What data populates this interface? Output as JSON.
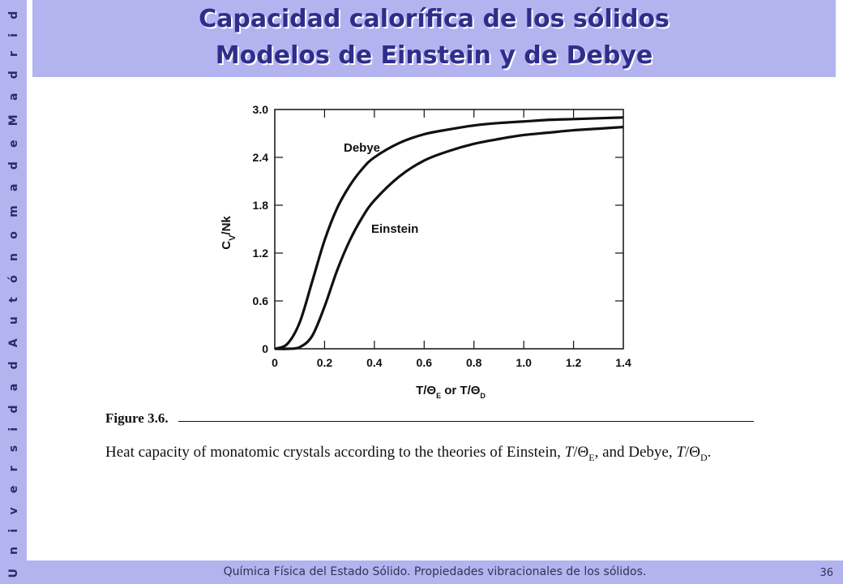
{
  "sidebar": {
    "text": "U n i v e r s i d a d   A u t ó n o m a   d e   M a d r i d"
  },
  "title": {
    "line1": "Capacidad calorífica de los sólidos",
    "line2": "Modelos de Einstein y de Debye"
  },
  "footer": {
    "text": "Química Física del Estado Sólido. Propiedades vibracionales de los sólidos.",
    "page": "36"
  },
  "chart_data": {
    "type": "line",
    "title": "",
    "xlabel": "T/Θ_E or T/Θ_D",
    "ylabel": "C_V/Nk",
    "xlim": [
      0,
      1.4
    ],
    "ylim": [
      0,
      3.0
    ],
    "grid": true,
    "x_ticks": [
      "0",
      "0.2",
      "0.4",
      "0.6",
      "0.8",
      "1.0",
      "1.2",
      "1.4"
    ],
    "y_ticks": [
      "0",
      "0.6",
      "1.2",
      "1.8",
      "2.4",
      "3.0"
    ],
    "series": [
      {
        "name": "Debye",
        "x": [
          0.0,
          0.05,
          0.1,
          0.15,
          0.2,
          0.25,
          0.3,
          0.35,
          0.4,
          0.5,
          0.6,
          0.7,
          0.8,
          0.9,
          1.0,
          1.1,
          1.2,
          1.3,
          1.4
        ],
        "y": [
          0.0,
          0.06,
          0.33,
          0.84,
          1.36,
          1.76,
          2.04,
          2.25,
          2.4,
          2.58,
          2.69,
          2.75,
          2.8,
          2.83,
          2.85,
          2.87,
          2.88,
          2.89,
          2.9
        ]
      },
      {
        "name": "Einstein",
        "x": [
          0.0,
          0.05,
          0.1,
          0.15,
          0.2,
          0.25,
          0.3,
          0.35,
          0.4,
          0.5,
          0.6,
          0.7,
          0.8,
          0.9,
          1.0,
          1.1,
          1.2,
          1.3,
          1.4
        ],
        "y": [
          0.0,
          0.0,
          0.02,
          0.16,
          0.53,
          0.98,
          1.35,
          1.64,
          1.86,
          2.16,
          2.36,
          2.48,
          2.57,
          2.63,
          2.68,
          2.71,
          2.74,
          2.76,
          2.78
        ]
      }
    ],
    "annotations": [
      "Debye",
      "Einstein"
    ]
  },
  "caption": {
    "figure_label": "Figure 3.6.",
    "text_prefix": "Heat capacity of monatomic crystals according to the theories of Einstein, ",
    "text_mid": ", and Debye, ",
    "text_suffix": "."
  }
}
